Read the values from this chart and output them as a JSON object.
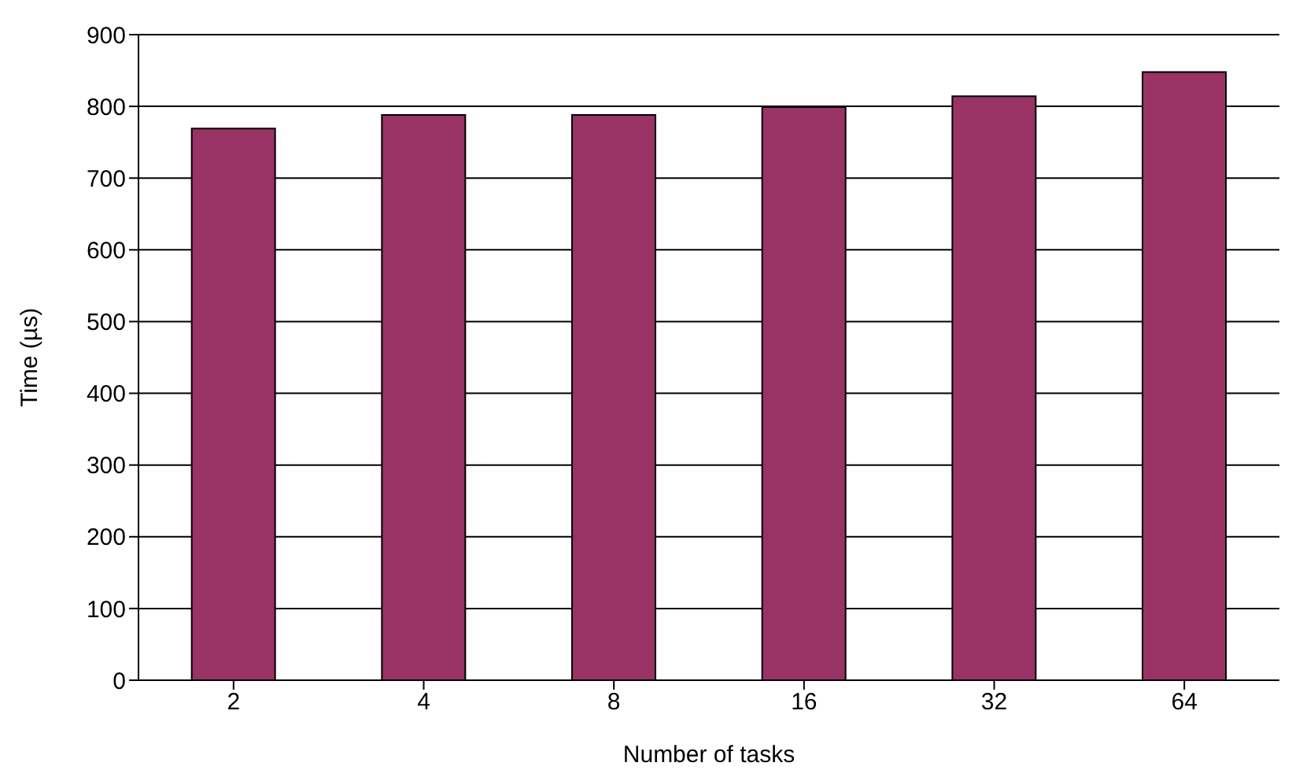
{
  "chart_data": {
    "type": "bar",
    "xlabel": "Number of tasks",
    "ylabel": "Time (µs)",
    "categories": [
      "2",
      "4",
      "8",
      "16",
      "32",
      "64"
    ],
    "values": [
      769,
      788,
      788,
      799,
      814,
      848
    ],
    "color": "#993366",
    "ylim": [
      0,
      900
    ],
    "yticks": [
      0,
      100,
      200,
      300,
      400,
      500,
      600,
      700,
      800,
      900
    ],
    "grid": "y"
  }
}
